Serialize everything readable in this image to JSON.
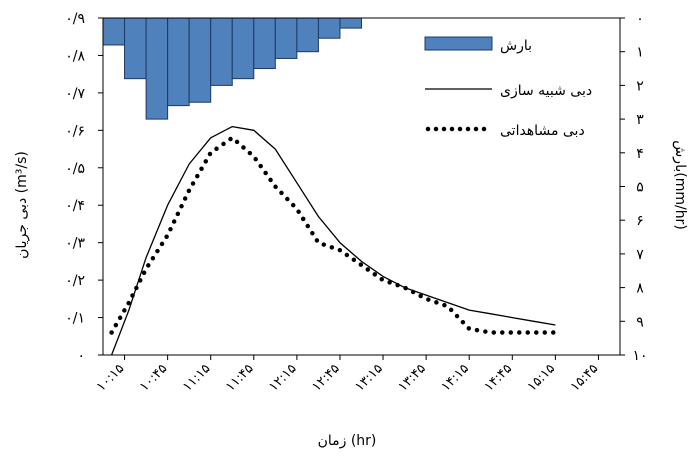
{
  "chart_data": {
    "type": "bar+line",
    "xlabel": "زمان (hr)",
    "ylabel_left": "دبی جریان (m³/s)",
    "ylabel_right": "بارش(mm/hr)",
    "y_left_ticks": [
      "۰",
      "۰/۱",
      "۰/۲",
      "۰/۳",
      "۰/۴",
      "۰/۵",
      "۰/۶",
      "۰/۷",
      "۰/۸",
      "۰/۹"
    ],
    "y_left_range": [
      0,
      0.9
    ],
    "y_right_ticks": [
      "۰",
      "۱",
      "۲",
      "۳",
      "۴",
      "۵",
      "۶",
      "۷",
      "۸",
      "۹",
      "۱۰"
    ],
    "y_right_range_inverted": [
      0,
      10
    ],
    "x_ticks": [
      "۱۰:۱۵",
      "۱۰:۴۵",
      "۱۱:۱۵",
      "۱۱:۴۵",
      "۱۲:۱۵",
      "۱۲:۴۵",
      "۱۳:۱۵",
      "۱۳:۴۵",
      "۱۴:۱۵",
      "۱۴:۴۵",
      "۱۵:۱۵",
      "۱۵:۴۵"
    ],
    "x_range_hours": [
      10.0,
      16.0
    ],
    "legend": {
      "rain": "بارش",
      "simulated": "دبی شبیه سازی",
      "observed": "دبی مشاهداتی"
    },
    "rainfall": {
      "name": "بارش",
      "x_start": 10.0,
      "bin_width_hours": 0.25,
      "values_mm_hr": [
        0.8,
        1.8,
        3.0,
        2.6,
        2.5,
        2.0,
        1.8,
        1.5,
        1.2,
        1.0,
        0.6,
        0.3
      ]
    },
    "series": [
      {
        "name": "دبی شبیه سازی",
        "style": "solid",
        "x": [
          10.1,
          10.3,
          10.5,
          10.75,
          11.0,
          11.25,
          11.5,
          11.75,
          12.0,
          12.25,
          12.5,
          12.75,
          13.0,
          13.25,
          13.5,
          13.75,
          14.0,
          14.25,
          14.5,
          14.75,
          15.0,
          15.25
        ],
        "y": [
          0.0,
          0.12,
          0.26,
          0.4,
          0.51,
          0.58,
          0.61,
          0.6,
          0.55,
          0.46,
          0.37,
          0.3,
          0.25,
          0.21,
          0.18,
          0.16,
          0.14,
          0.12,
          0.11,
          0.1,
          0.09,
          0.08
        ]
      },
      {
        "name": "دبی مشاهداتی",
        "style": "dotted",
        "x": [
          10.1,
          10.3,
          10.5,
          10.75,
          11.0,
          11.25,
          11.5,
          11.75,
          12.0,
          12.25,
          12.5,
          12.75,
          13.0,
          13.25,
          13.5,
          13.75,
          14.0,
          14.25,
          14.5,
          14.75,
          15.0,
          15.25
        ],
        "y": [
          0.06,
          0.14,
          0.23,
          0.32,
          0.44,
          0.54,
          0.58,
          0.53,
          0.45,
          0.39,
          0.3,
          0.28,
          0.24,
          0.2,
          0.18,
          0.15,
          0.13,
          0.07,
          0.06,
          0.06,
          0.06,
          0.06
        ]
      }
    ]
  },
  "colors": {
    "rain_fill": "#4f81bd",
    "rain_stroke": "#1f3864",
    "line": "#000000",
    "axis": "#000000"
  }
}
